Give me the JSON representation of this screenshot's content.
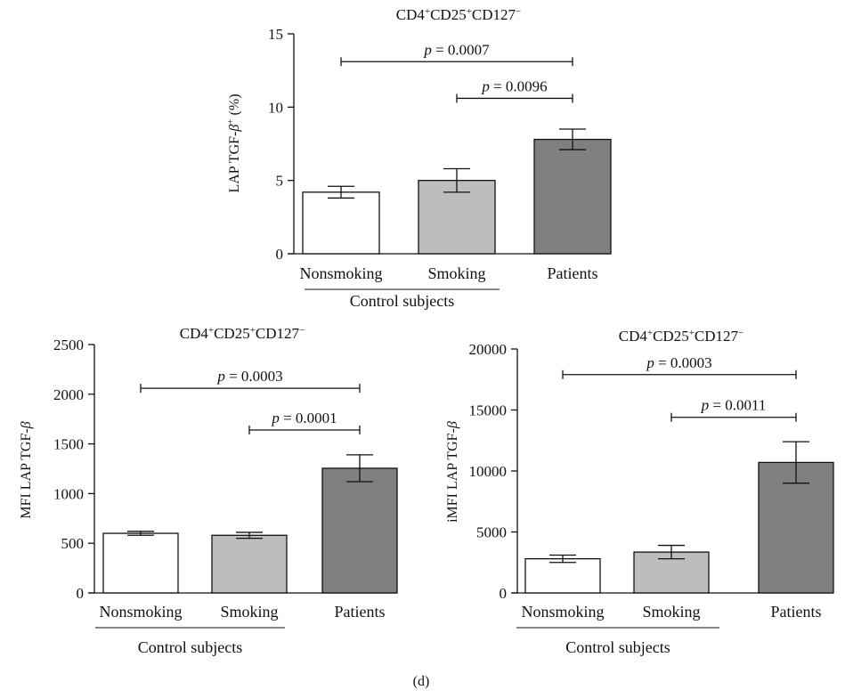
{
  "figure_label": "(d)",
  "chart_data": [
    {
      "type": "bar",
      "title": "CD4+CD25+CD127−",
      "title_parts": [
        {
          "t": "CD4"
        },
        {
          "t": "+",
          "sup": true
        },
        {
          "t": "CD25"
        },
        {
          "t": "+",
          "sup": true
        },
        {
          "t": "CD127"
        },
        {
          "t": "−",
          "sup": true
        }
      ],
      "ylabel": "LAP TGF-β+ (%)",
      "ylabel_parts": [
        {
          "t": "LAP TGF-"
        },
        {
          "t": "β",
          "italic": true
        },
        {
          "t": "+",
          "sup": true
        },
        {
          "t": " (%)"
        }
      ],
      "categories": [
        "Nonsmoking",
        "Smoking",
        "Patients"
      ],
      "group_label": "Control subjects",
      "values": [
        4.2,
        5.0,
        7.8
      ],
      "errors": [
        0.4,
        0.8,
        0.7
      ],
      "colors": [
        "#ffffff",
        "#bdbdbd",
        "#808080"
      ],
      "ylim": [
        0,
        15
      ],
      "yticks": [
        0,
        5,
        10,
        15
      ],
      "tick_labels": [
        "0",
        "5",
        "10",
        "15"
      ],
      "annotations": [
        {
          "from": 0,
          "to": 2,
          "y": 13.1,
          "p_symbol": "p",
          "text": " = 0.0007"
        },
        {
          "from": 1,
          "to": 2,
          "y": 10.6,
          "p_symbol": "p",
          "text": " = 0.0096"
        }
      ]
    },
    {
      "type": "bar",
      "title": "CD4+CD25+CD127−",
      "title_parts": [
        {
          "t": "CD4"
        },
        {
          "t": "+",
          "sup": true
        },
        {
          "t": "CD25"
        },
        {
          "t": "+",
          "sup": true
        },
        {
          "t": "CD127"
        },
        {
          "t": "−",
          "sup": true
        }
      ],
      "ylabel": "MFI LAP TGF-β",
      "ylabel_parts": [
        {
          "t": "MFI LAP TGF-"
        },
        {
          "t": "β",
          "italic": true
        }
      ],
      "categories": [
        "Nonsmoking",
        "Smoking",
        "Patients"
      ],
      "group_label": "Control subjects",
      "values": [
        600,
        580,
        1255
      ],
      "errors": [
        20,
        30,
        135
      ],
      "colors": [
        "#ffffff",
        "#bdbdbd",
        "#808080"
      ],
      "ylim": [
        0,
        2500
      ],
      "yticks": [
        0,
        500,
        1000,
        1500,
        2000,
        2500
      ],
      "tick_labels": [
        "0",
        "500",
        "1000",
        "1500",
        "2000",
        "2500"
      ],
      "annotations": [
        {
          "from": 0,
          "to": 2,
          "y": 2060,
          "p_symbol": "p",
          "text": " = 0.0003"
        },
        {
          "from": 1,
          "to": 2,
          "y": 1640,
          "p_symbol": "p",
          "text": " = 0.0001"
        }
      ]
    },
    {
      "type": "bar",
      "title": "CD4+CD25+CD127−",
      "title_parts": [
        {
          "t": "CD4"
        },
        {
          "t": "+",
          "sup": true
        },
        {
          "t": "CD25"
        },
        {
          "t": "+",
          "sup": true
        },
        {
          "t": "CD127"
        },
        {
          "t": "−",
          "sup": true
        }
      ],
      "ylabel": "iMFI LAP TGF-β",
      "ylabel_parts": [
        {
          "t": "iMFI LAP TGF-"
        },
        {
          "t": "β",
          "italic": true
        }
      ],
      "categories": [
        "Nonsmoking",
        "Smoking",
        "Patients"
      ],
      "group_label": "Control subjects",
      "values": [
        2800,
        3350,
        10700
      ],
      "errors": [
        300,
        550,
        1700
      ],
      "colors": [
        "#ffffff",
        "#bdbdbd",
        "#808080"
      ],
      "ylim": [
        0,
        20000
      ],
      "yticks": [
        0,
        5000,
        10000,
        15000,
        20000
      ],
      "tick_labels": [
        "0",
        "5000",
        "10000",
        "15000",
        "20000"
      ],
      "annotations": [
        {
          "from": 0,
          "to": 2,
          "y": 17900,
          "p_symbol": "p",
          "text": " = 0.0003"
        },
        {
          "from": 1,
          "to": 2,
          "y": 14400,
          "p_symbol": "p",
          "text": " = 0.0011"
        }
      ]
    }
  ]
}
